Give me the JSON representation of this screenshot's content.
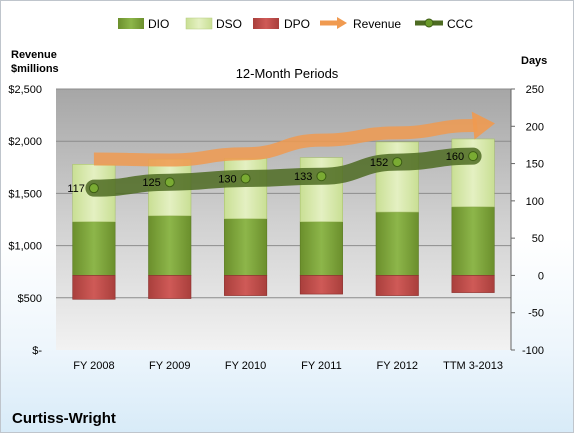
{
  "title": "12-Month Periods",
  "company": "Curtiss-Wright",
  "left_axis_title": [
    "Revenue",
    "$millions"
  ],
  "right_axis_title": "Days",
  "colors": {
    "dio": "#7fa43a",
    "dso": "#d6e8a6",
    "dpo": "#c0504d",
    "revenue": "#f09a50",
    "ccc": "#4d6b22",
    "plot_bg": "#bfbfbf"
  },
  "chart_data": {
    "type": "bar",
    "categories": [
      "FY 2008",
      "FY 2009",
      "FY 2010",
      "FY 2011",
      "FY 2012",
      "TTM 3-2013"
    ],
    "left_axis": {
      "min": 0,
      "max": 2500,
      "step": 500,
      "tick_labels": [
        "$-",
        "$500",
        "$1,000",
        "$1,500",
        "$2,000",
        "$2,500"
      ]
    },
    "right_axis": {
      "min": -100,
      "max": 250,
      "step": 50,
      "tick_labels": [
        "-100",
        "-50",
        "0",
        "50",
        "100",
        "150",
        "200",
        "250"
      ]
    },
    "series": [
      {
        "name": "DIO",
        "axis": "days",
        "values": [
          72,
          80,
          76,
          72,
          85,
          92
        ]
      },
      {
        "name": "DSO",
        "axis": "days",
        "values": [
          77,
          76,
          81,
          86,
          94,
          91
        ]
      },
      {
        "name": "DPO",
        "axis": "days",
        "values": [
          -32,
          -31,
          -27,
          -25,
          -27,
          -23
        ]
      },
      {
        "name": "Revenue",
        "axis": "revenue",
        "values": [
          1830,
          1820,
          1880,
          2010,
          2080,
          2150
        ]
      },
      {
        "name": "CCC",
        "axis": "days",
        "values": [
          117,
          125,
          130,
          133,
          152,
          160
        ]
      }
    ],
    "ccc_labels": [
      "117",
      "125",
      "130",
      "133",
      "152",
      "160"
    ],
    "legend_position": "top",
    "grid": true
  }
}
